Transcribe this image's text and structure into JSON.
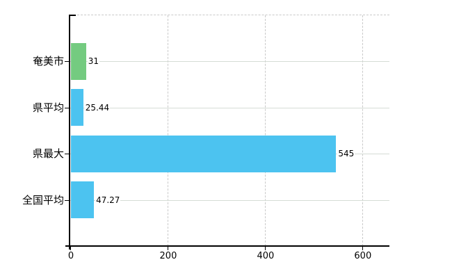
{
  "chart_data": {
    "type": "bar",
    "orientation": "horizontal",
    "title": "",
    "xlabel": "",
    "ylabel": "",
    "categories": [
      "奄美市",
      "県平均",
      "県最大",
      "全国平均"
    ],
    "values": [
      31,
      25.44,
      545,
      47.27
    ],
    "value_labels": [
      "31",
      "25.44",
      "545",
      "47.27"
    ],
    "bar_colors": [
      "#74cb80",
      "#4cc3f0",
      "#4cc3f0",
      "#4cc3f0"
    ],
    "x_ticks": [
      0,
      200,
      400,
      600
    ],
    "x_tick_labels": [
      "0",
      "200",
      "400",
      "600"
    ],
    "xlim": [
      0,
      656
    ],
    "grid": {
      "horizontal": "solid",
      "vertical": "dashed"
    },
    "legend": "none"
  },
  "colors": {
    "background": "#ffffff",
    "bar_blue": "#4cc3f0",
    "bar_green": "#74cb80",
    "grid_horizontal": "#d5dcd5",
    "grid_vertical": "#c9c9c9",
    "axis": "#000000",
    "text": "#000000"
  }
}
